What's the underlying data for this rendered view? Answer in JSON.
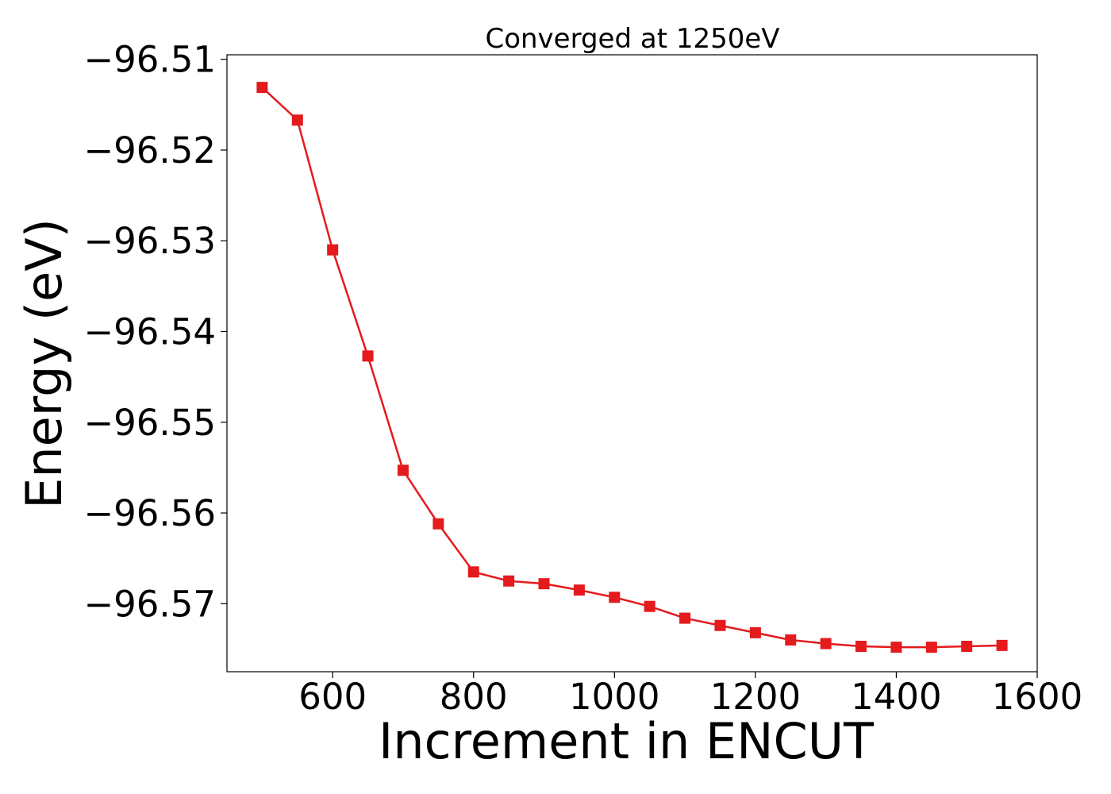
{
  "chart_data": {
    "type": "line",
    "title": "Converged at 1250eV",
    "xlabel": "Increment in ENCUT",
    "ylabel": "Energy (eV)",
    "xlim": [
      450,
      1600
    ],
    "ylim": [
      -96.5775,
      -96.5095
    ],
    "x_ticks": [
      600,
      800,
      1000,
      1200,
      1400,
      1600
    ],
    "y_ticks": [
      -96.51,
      -96.52,
      -96.53,
      -96.54,
      -96.55,
      -96.56,
      -96.57
    ],
    "x_tick_labels": [
      "600",
      "800",
      "1000",
      "1200",
      "1400",
      "1600"
    ],
    "y_tick_labels": [
      "−96.51",
      "−96.52",
      "−96.53",
      "−96.54",
      "−96.55",
      "−96.56",
      "−96.57"
    ],
    "grid": false,
    "legend": "none",
    "marker": "square",
    "color": "#e41a1c",
    "series": [
      {
        "x": [
          500,
          550,
          600,
          650,
          700,
          750,
          800,
          850,
          900,
          950,
          1000,
          1050,
          1100,
          1150,
          1200,
          1250,
          1300,
          1350,
          1400,
          1450,
          1500,
          1550
        ],
        "y": [
          -96.5131,
          -96.5167,
          -96.531,
          -96.5427,
          -96.5553,
          -96.5612,
          -96.5665,
          -96.5675,
          -96.5678,
          -96.5685,
          -96.5693,
          -96.5703,
          -96.5716,
          -96.5724,
          -96.5732,
          -96.574,
          -96.5744,
          -96.5747,
          -96.5748,
          -96.5748,
          -96.5747,
          -96.5746
        ]
      }
    ]
  }
}
